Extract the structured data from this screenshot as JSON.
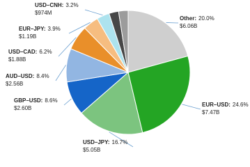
{
  "chart_data": {
    "type": "pie",
    "categories": [
      "Other:",
      "EUR–USD:",
      "USD–JPY:",
      "GBP–USD:",
      "AUD–USD:",
      "USD–CAD:",
      "EUR–JPY:",
      "USD–CNH:",
      null,
      null
    ],
    "values": [
      20.0,
      24.6,
      16.7,
      8.6,
      8.4,
      6.2,
      3.9,
      3.2,
      2.4,
      2.4
    ],
    "value_labels": [
      "20.0%",
      "24.6%",
      "16.7%",
      "8.6%",
      "8.4%",
      "6.2%",
      "3.9%",
      "3.2%",
      null,
      null
    ],
    "amounts": [
      "$6.06B",
      "$7.47B",
      "$5.05B",
      "$2.60B",
      "$2.56B",
      "$1.88B",
      "$1.19B",
      "$974M",
      null,
      null
    ],
    "colors": [
      "#cfcfcf",
      "#24a524",
      "#7cc47f",
      "#1565c8",
      "#92b6e2",
      "#e98f2a",
      "#f6bd80",
      "#ade3ee",
      "#474747",
      "#9c9c9c"
    ]
  }
}
